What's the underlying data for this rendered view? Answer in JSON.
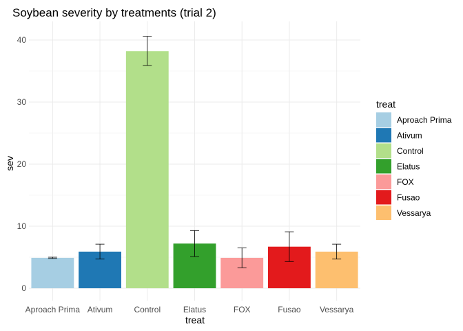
{
  "chart_data": {
    "type": "bar",
    "title": "Soybean severity by treatments (trial 2)",
    "xlabel": "treat",
    "ylabel": "sev",
    "categories": [
      "Aproach Prima",
      "Ativum",
      "Control",
      "Elatus",
      "FOX",
      "Fusao",
      "Vessarya"
    ],
    "values": [
      4.9,
      5.9,
      38.2,
      7.2,
      4.9,
      6.7,
      5.9
    ],
    "error_low": [
      4.8,
      4.7,
      35.9,
      5.1,
      3.3,
      4.3,
      4.7
    ],
    "error_high": [
      5.0,
      7.1,
      40.6,
      9.3,
      6.5,
      9.1,
      7.1
    ],
    "ylim": [
      0,
      42.5
    ],
    "yticks": [
      "0",
      "10",
      "20",
      "30",
      "40"
    ],
    "ytick_values": [
      0,
      10,
      20,
      30,
      40
    ],
    "colors": [
      "#a6cee3",
      "#1f78b4",
      "#b2df8a",
      "#33a02c",
      "#fb9a99",
      "#e31a1c",
      "#fdbf6f"
    ],
    "grid": true,
    "legend": {
      "title": "treat",
      "position": "right",
      "entries": [
        "Aproach Prima",
        "Ativum",
        "Control",
        "Elatus",
        "FOX",
        "Fusao",
        "Vessarya"
      ]
    }
  }
}
